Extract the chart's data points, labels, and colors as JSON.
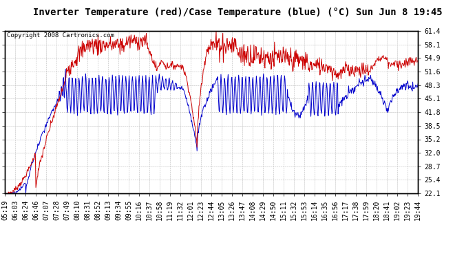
{
  "title": "Inverter Temperature (red)/Case Temperature (blue) (°C) Sun Jun 8 19:45",
  "copyright": "Copyright 2008 Cartronics.com",
  "background_color": "#ffffff",
  "plot_bg_color": "#ffffff",
  "grid_color": "#bbbbbb",
  "y_min": 22.1,
  "y_max": 61.4,
  "y_ticks": [
    22.1,
    25.4,
    28.7,
    32.0,
    35.2,
    38.5,
    41.8,
    45.1,
    48.3,
    51.6,
    54.9,
    58.1,
    61.4
  ],
  "x_labels": [
    "05:19",
    "06:03",
    "06:24",
    "06:46",
    "07:07",
    "07:28",
    "07:49",
    "08:10",
    "08:31",
    "08:52",
    "09:13",
    "09:34",
    "09:55",
    "10:16",
    "10:37",
    "10:58",
    "11:19",
    "11:32",
    "12:01",
    "12:23",
    "12:44",
    "13:05",
    "13:26",
    "13:47",
    "14:08",
    "14:29",
    "14:50",
    "15:11",
    "15:32",
    "15:53",
    "16:14",
    "16:35",
    "16:56",
    "17:17",
    "17:38",
    "17:59",
    "18:20",
    "18:41",
    "19:02",
    "19:23",
    "19:44"
  ],
  "red_color": "#cc0000",
  "blue_color": "#0000cc",
  "line_width": 0.7,
  "title_fontsize": 10,
  "tick_fontsize": 7,
  "copyright_fontsize": 6.5
}
